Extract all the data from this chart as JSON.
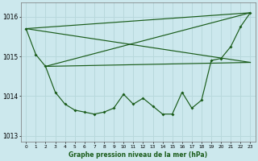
{
  "title": "Graphe pression niveau de la mer (hPa)",
  "bg_color": "#cce8ed",
  "line_color": "#1a5c1a",
  "grid_color": "#b8d8dc",
  "xlim": [
    -0.5,
    23.5
  ],
  "ylim": [
    1012.85,
    1016.35
  ],
  "yticks": [
    1013,
    1014,
    1015,
    1016
  ],
  "xtick_labels": [
    "0",
    "1",
    "2",
    "3",
    "4",
    "5",
    "6",
    "7",
    "8",
    "9",
    "10",
    "11",
    "12",
    "13",
    "14",
    "15",
    "16",
    "17",
    "18",
    "19",
    "20",
    "21",
    "22",
    "23"
  ],
  "main_x": [
    0,
    1,
    2,
    3,
    4,
    5,
    6,
    7,
    8,
    9,
    10,
    11,
    12,
    13,
    14,
    15,
    16,
    17,
    18,
    19,
    20,
    21,
    22,
    23
  ],
  "main_y": [
    1015.7,
    1015.05,
    1014.75,
    1014.1,
    1013.8,
    1013.65,
    1013.6,
    1013.55,
    1013.6,
    1013.7,
    1014.05,
    1013.8,
    1013.95,
    1013.75,
    1013.55,
    1013.55,
    1014.1,
    1013.7,
    1013.9,
    1014.9,
    1014.95,
    1015.25,
    1015.75,
    1016.1
  ],
  "trend_lines": [
    {
      "x": [
        0,
        23
      ],
      "y": [
        1015.7,
        1016.1
      ]
    },
    {
      "x": [
        0,
        23
      ],
      "y": [
        1015.7,
        1014.85
      ]
    },
    {
      "x": [
        2,
        23
      ],
      "y": [
        1014.75,
        1016.1
      ]
    },
    {
      "x": [
        2,
        23
      ],
      "y": [
        1014.75,
        1014.85
      ]
    }
  ]
}
